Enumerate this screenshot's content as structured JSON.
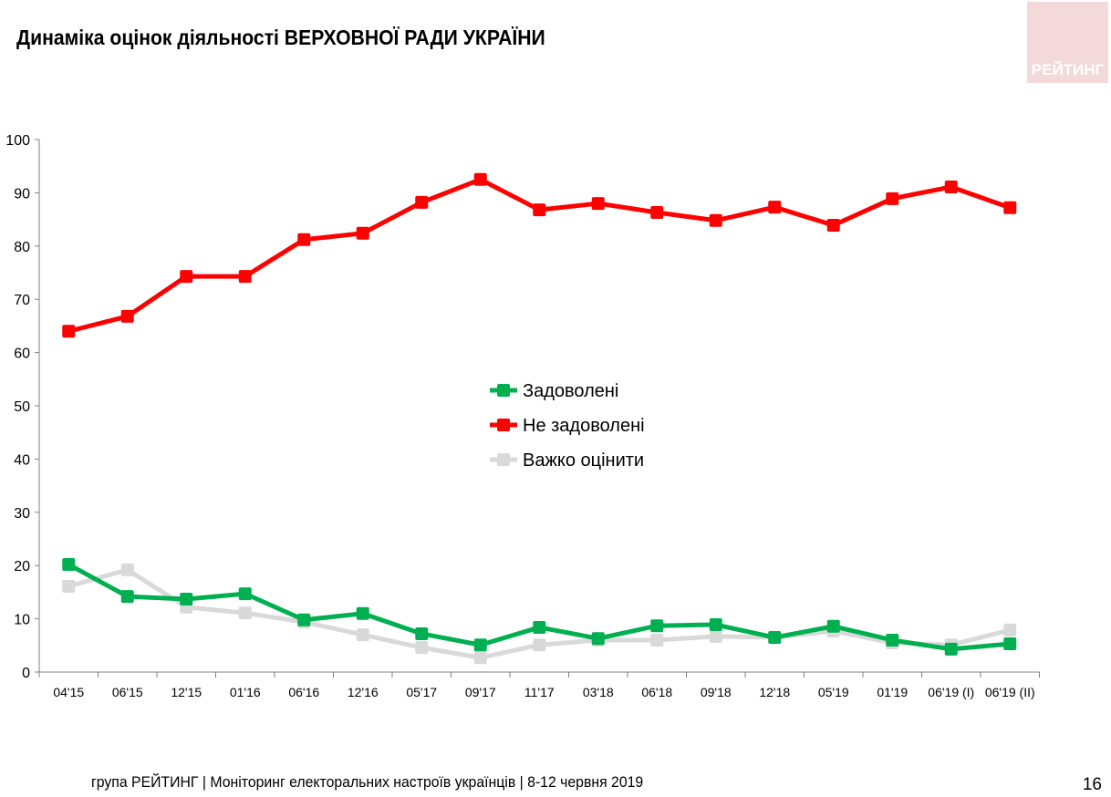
{
  "title": "Динаміка оцінок діяльності ВЕРХОВНОЇ РАДИ УКРАЇНИ",
  "logo_text": "РЕЙТИНГ",
  "footer": "група РЕЙТИНГ | Моніторинг електоральних настроїв українців  | 8-12 червня 2019",
  "page_number": "16",
  "chart_data": {
    "type": "line",
    "title": "Динаміка оцінок діяльності ВЕРХОВНОЇ РАДИ УКРАЇНИ",
    "categories": [
      "04'15",
      "06'15",
      "12'15",
      "01'16",
      "06'16",
      "12'16",
      "05'17",
      "09'17",
      "11'17",
      "03'18",
      "06'18",
      "09'18",
      "12'18",
      "05'19",
      "01'19",
      "06'19 (I)",
      "06'19 (II)"
    ],
    "ylim": [
      0,
      100
    ],
    "yticks": [
      0,
      10,
      20,
      30,
      40,
      50,
      60,
      70,
      80,
      90,
      100
    ],
    "grid": false,
    "legend_placement": "center",
    "series": [
      {
        "name": "Задоволені",
        "color": "#00b050",
        "values": [
          20.2,
          14.2,
          13.7,
          14.7,
          9.8,
          11.0,
          7.2,
          5.1,
          8.4,
          6.3,
          8.7,
          8.9,
          6.5,
          8.6,
          6.0,
          4.3,
          5.3
        ]
      },
      {
        "name": "Не задоволені",
        "color": "#ff0000",
        "values": [
          64.0,
          66.8,
          74.3,
          74.3,
          81.2,
          82.4,
          88.2,
          92.5,
          86.8,
          88.0,
          86.3,
          84.8,
          87.3,
          83.9,
          88.9,
          91.1,
          87.2
        ]
      },
      {
        "name": "Важко оцінити",
        "color": "#d9d9d9",
        "values": [
          16.1,
          19.2,
          12.2,
          11.1,
          9.4,
          7.0,
          4.6,
          2.7,
          5.1,
          6.0,
          6.0,
          6.7,
          6.5,
          7.7,
          5.5,
          5.1,
          7.9
        ]
      }
    ]
  }
}
